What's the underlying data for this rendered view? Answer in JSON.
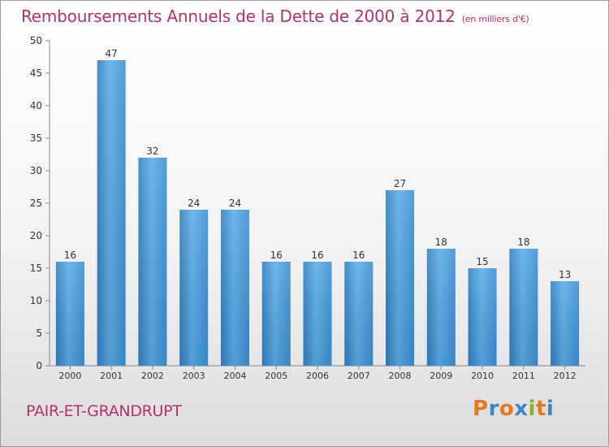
{
  "header": {
    "title": "Remboursements Annuels de la Dette de 2000 à 2012",
    "subtitle": "(en milliers d'€)"
  },
  "footer": {
    "city": "PAIR-ET-GRANDRUPT",
    "logo_text": "Proxiti",
    "logo_colors": [
      "#e8781e",
      "#3f86c8",
      "#e8781e",
      "#3f86c8",
      "#8ab52a",
      "#e8781e",
      "#3f86c8"
    ]
  },
  "chart_data": {
    "type": "bar",
    "categories": [
      "2000",
      "2001",
      "2002",
      "2003",
      "2004",
      "2005",
      "2006",
      "2007",
      "2008",
      "2009",
      "2010",
      "2011",
      "2012"
    ],
    "values": [
      16,
      47,
      32,
      24,
      24,
      16,
      16,
      16,
      27,
      18,
      15,
      18,
      13
    ],
    "ylim": [
      0,
      50
    ],
    "yticks": [
      0,
      5,
      10,
      15,
      20,
      25,
      30,
      35,
      40,
      45,
      50
    ],
    "grid": false,
    "bar_color": "#3a8fd4",
    "bar_color_light": "#5fb0ea",
    "text_color": "#333333"
  }
}
